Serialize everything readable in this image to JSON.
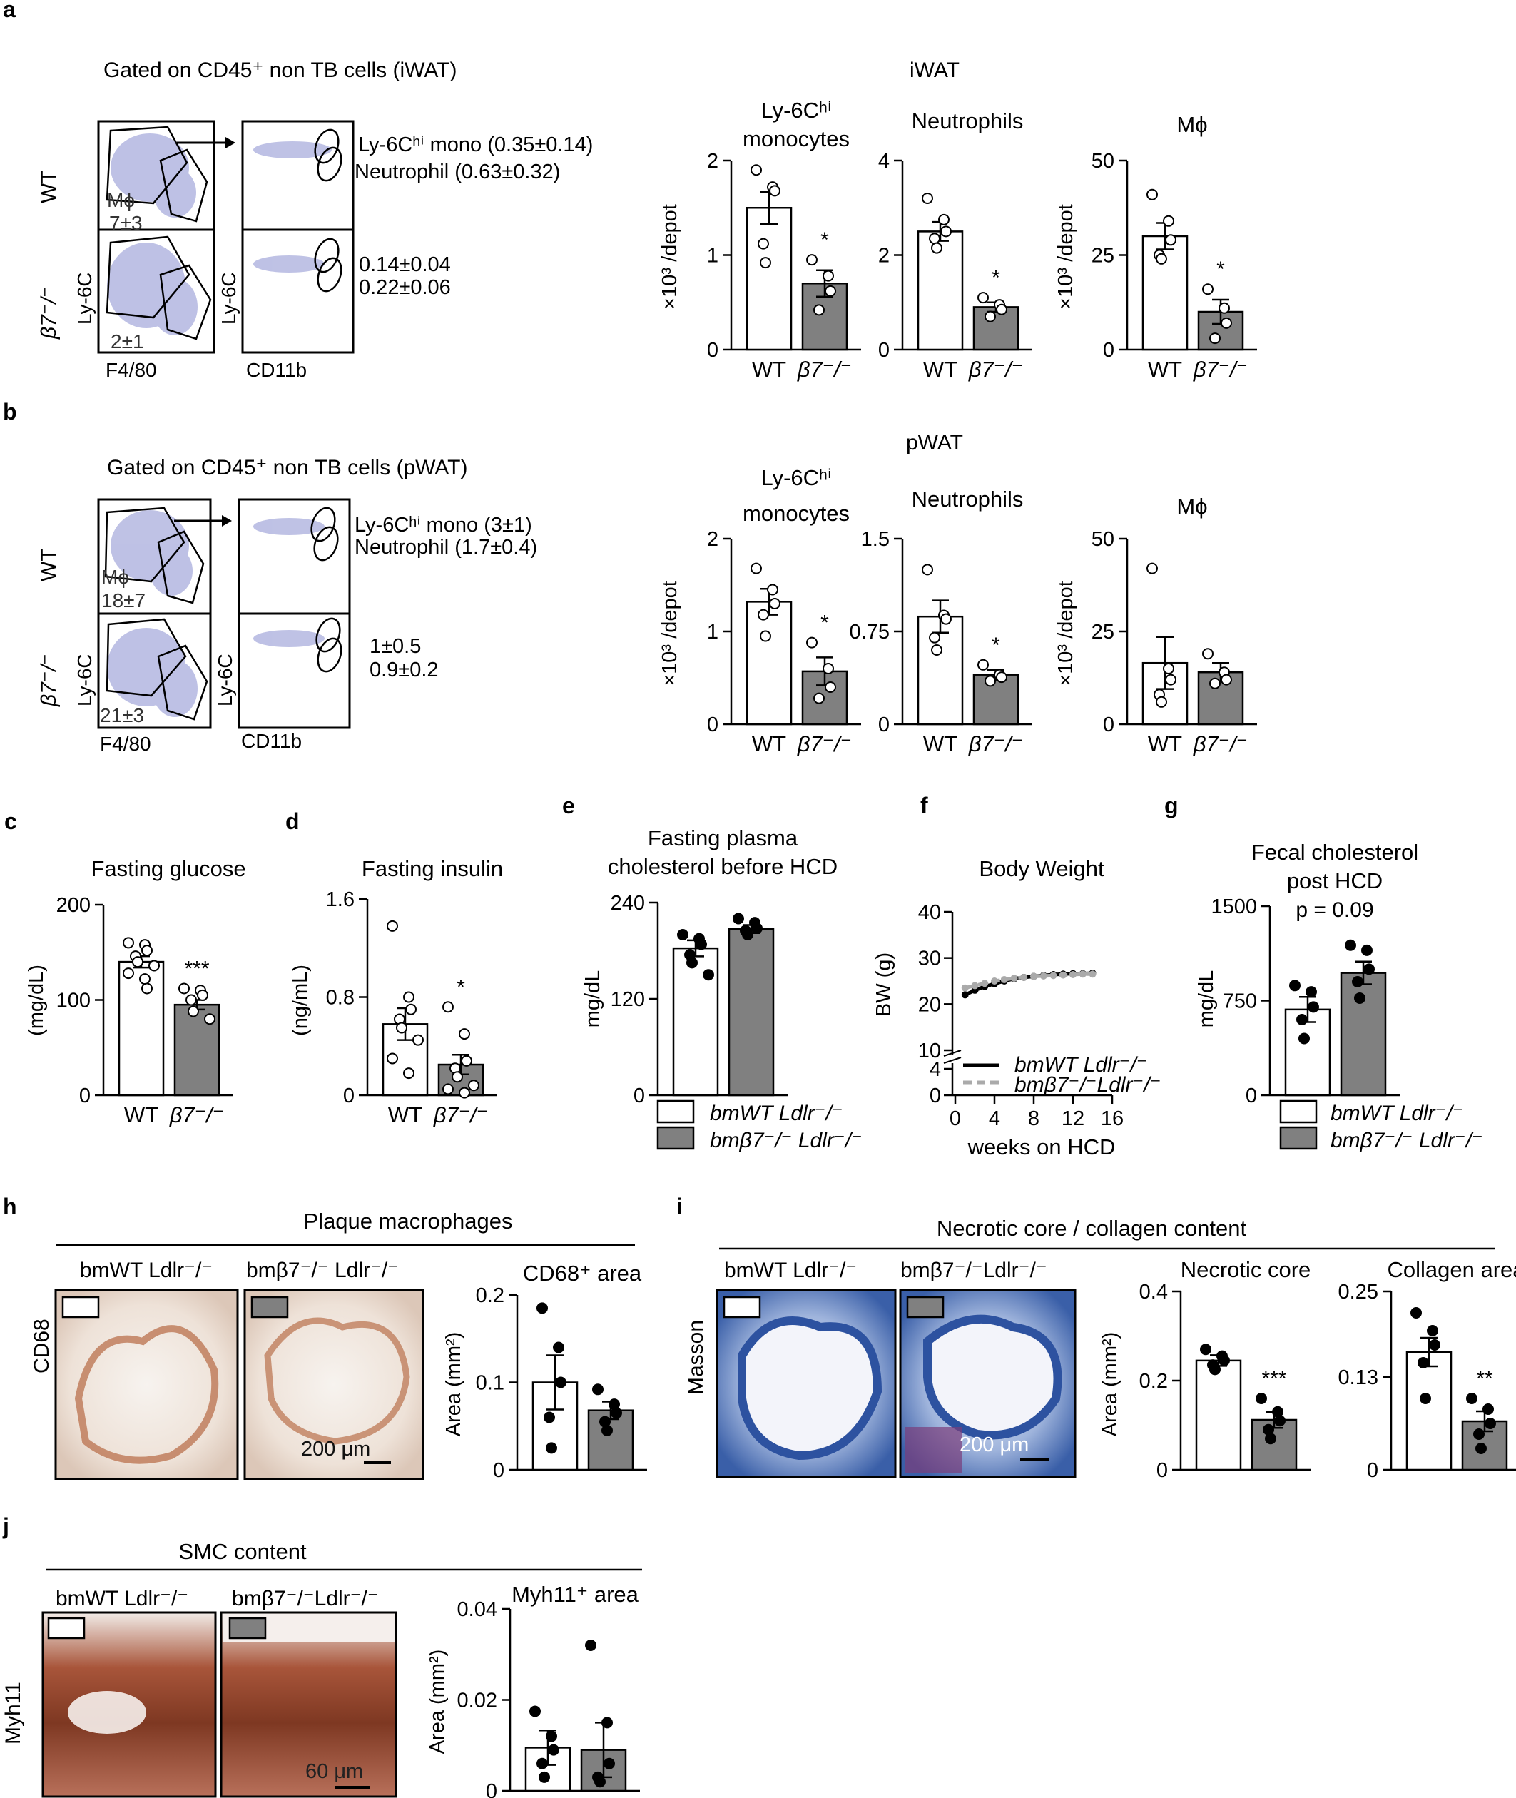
{
  "panels": {
    "a": {
      "letter": "a",
      "gating_title": "Gated on CD45⁺ non TB cells (iWAT)",
      "wt": "WT",
      "ko": "β7⁻/⁻",
      "mphi_wt": "Mϕ",
      "mphi_wt_val": "7±3",
      "mphi_ko_val": "2±1",
      "ly6c_line_wt": "Ly-6Cʰⁱ mono (0.35±0.14)",
      "neut_line_wt": "Neutrophil (0.63±0.32)",
      "ly6c_val_ko": "0.14±0.04",
      "neut_val_ko": "0.22±0.06",
      "axis_ly6c": "Ly-6C",
      "axis_f480": "F4/80",
      "axis_cd11b": "CD11b",
      "group_title": "iWAT"
    },
    "b": {
      "letter": "b",
      "gating_title": "Gated on CD45⁺ non TB cells (pWAT)",
      "wt": "WT",
      "ko": "β7⁻/⁻",
      "mphi_wt": "Mϕ",
      "mphi_wt_val": "18±7",
      "mphi_ko_val": "21±3",
      "ly6c_line_wt": "Ly-6Cʰⁱ mono (3±1)",
      "neut_line_wt": "Neutrophil (1.7±0.4)",
      "ly6c_val_ko": "1±0.5",
      "neut_val_ko": "0.9±0.2",
      "axis_ly6c": "Ly-6C",
      "axis_f480": "F4/80",
      "axis_cd11b": "CD11b",
      "group_title": "pWAT"
    },
    "c": {
      "letter": "c"
    },
    "d": {
      "letter": "d"
    },
    "e": {
      "letter": "e",
      "legend_wt": "bmWT Ldlr⁻/⁻",
      "legend_ko": "bmβ7⁻/⁻ Ldlr⁻/⁻"
    },
    "f": {
      "letter": "f",
      "legend_wt": "bmWT Ldlr⁻/⁻",
      "legend_ko": "bmβ7⁻/⁻Ldlr⁻/⁻"
    },
    "g": {
      "letter": "g",
      "legend_wt": "bmWT Ldlr⁻/⁻",
      "legend_ko": "bmβ7⁻/⁻ Ldlr⁻/⁻"
    },
    "h": {
      "letter": "h",
      "title": "Plaque macrophages",
      "img_wt": "bmWT Ldlr⁻/⁻",
      "img_ko": "bmβ7⁻/⁻ Ldlr⁻/⁻",
      "stain": "CD68",
      "scale": "200 μm"
    },
    "i": {
      "letter": "i",
      "title": "Necrotic core / collagen content",
      "img_wt": "bmWT Ldlr⁻/⁻",
      "img_ko": "bmβ7⁻/⁻Ldlr⁻/⁻",
      "stain": "Masson",
      "scale": "200 μm"
    },
    "j": {
      "letter": "j",
      "title": "SMC content",
      "img_wt": "bmWT Ldlr⁻/⁻",
      "img_ko": "bmβ7⁻/⁻Ldlr⁻/⁻",
      "stain": "Myh11",
      "scale": "60 μm"
    }
  },
  "colors": {
    "wt_fill": "#ffffff",
    "ko_fill": "#808080",
    "dot_dark": "#000000",
    "cd68_stain": "#b9704c",
    "masson_blue": "#3a66b4",
    "myh11_stain": "#9a4a2e"
  },
  "chart_data": [
    {
      "id": "a1",
      "type": "bar",
      "title": "Ly-6Cʰⁱ monocytes",
      "ylabel": "×10³ /depot",
      "ylim": [
        0,
        2
      ],
      "yticks": [
        0,
        1,
        2
      ],
      "categories": [
        "WT",
        "β7⁻/⁻"
      ],
      "values": [
        1.5,
        0.7
      ],
      "errors": [
        0.17,
        0.14
      ],
      "points": [
        [
          1.9,
          1.72,
          1.68,
          1.12,
          0.92
        ],
        [
          0.95,
          0.78,
          0.62,
          0.42
        ]
      ],
      "point_style": "open",
      "annotation": "*"
    },
    {
      "id": "a2",
      "type": "bar",
      "title": "Neutrophils",
      "ylabel": "",
      "ylim": [
        0,
        4
      ],
      "yticks": [
        0,
        2,
        4
      ],
      "categories": [
        "WT",
        "β7⁻/⁻"
      ],
      "values": [
        2.5,
        0.9
      ],
      "errors": [
        0.2,
        0.1
      ],
      "points": [
        [
          3.2,
          2.75,
          2.5,
          2.35,
          2.15
        ],
        [
          1.1,
          0.95,
          0.85,
          0.7
        ]
      ],
      "point_style": "open",
      "annotation": "*"
    },
    {
      "id": "a3",
      "type": "bar",
      "title": "Mϕ",
      "ylabel": "×10³ /depot",
      "ylim": [
        0,
        50
      ],
      "yticks": [
        0,
        25,
        50
      ],
      "categories": [
        "WT",
        "β7⁻/⁻"
      ],
      "values": [
        30,
        10
      ],
      "errors": [
        3.5,
        3.2
      ],
      "points": [
        [
          41,
          34,
          29,
          25,
          24
        ],
        [
          16,
          11,
          7,
          3
        ]
      ],
      "point_style": "open",
      "annotation": "*"
    },
    {
      "id": "b1",
      "type": "bar",
      "title": "Ly-6Cʰⁱ monocytes",
      "ylabel": "×10³ /depot",
      "ylim": [
        0,
        2
      ],
      "yticks": [
        0,
        1,
        2
      ],
      "categories": [
        "WT",
        "β7⁻/⁻"
      ],
      "values": [
        1.32,
        0.57
      ],
      "errors": [
        0.14,
        0.15
      ],
      "points": [
        [
          1.68,
          1.45,
          1.3,
          1.18,
          0.95
        ],
        [
          0.88,
          0.6,
          0.4,
          0.28
        ]
      ],
      "point_style": "open",
      "annotation": "*"
    },
    {
      "id": "b2",
      "type": "bar",
      "title": "Neutrophils",
      "ylabel": "",
      "ylim": [
        0,
        1.5
      ],
      "yticks": [
        0,
        0.75,
        1.5
      ],
      "yticklabels": [
        "0",
        "0.75",
        "1.5"
      ],
      "categories": [
        "WT",
        "β7⁻/⁻"
      ],
      "values": [
        0.87,
        0.4
      ],
      "errors": [
        0.13,
        0.04
      ],
      "points": [
        [
          1.25,
          0.88,
          0.85,
          0.7,
          0.6
        ],
        [
          0.48,
          0.4,
          0.38,
          0.35
        ]
      ],
      "point_style": "open",
      "annotation": "*"
    },
    {
      "id": "b3",
      "type": "bar",
      "title": "Mϕ",
      "ylabel": "×10³ /depot",
      "ylim": [
        0,
        50
      ],
      "yticks": [
        0,
        25,
        50
      ],
      "categories": [
        "WT",
        "β7⁻/⁻"
      ],
      "values": [
        16.5,
        14
      ],
      "errors": [
        7,
        2.5
      ],
      "points": [
        [
          42,
          15,
          12,
          8,
          6
        ],
        [
          19,
          14,
          12,
          11
        ]
      ],
      "point_style": "open",
      "annotation": ""
    },
    {
      "id": "c",
      "type": "bar",
      "title": "Fasting glucose",
      "ylabel": "(mg/dL)",
      "ylim": [
        0,
        200
      ],
      "yticks": [
        0,
        100,
        200
      ],
      "categories": [
        "WT",
        "β7⁻/⁻"
      ],
      "values": [
        140,
        95
      ],
      "errors": [
        6,
        5
      ],
      "points": [
        [
          160,
          158,
          152,
          146,
          140,
          136,
          128,
          122,
          112
        ],
        [
          112,
          110,
          105,
          100,
          88,
          80
        ]
      ],
      "point_style": "open",
      "annotation": "***"
    },
    {
      "id": "d",
      "type": "bar",
      "title": "Fasting insulin",
      "ylabel": "(ng/mL)",
      "ylim": [
        0,
        1.6
      ],
      "yticks": [
        0,
        0.8,
        1.6
      ],
      "categories": [
        "WT",
        "β7⁻/⁻"
      ],
      "values": [
        0.58,
        0.25
      ],
      "errors": [
        0.13,
        0.08
      ],
      "points": [
        [
          1.38,
          0.8,
          0.7,
          0.62,
          0.55,
          0.45,
          0.3,
          0.18
        ],
        [
          0.72,
          0.5,
          0.28,
          0.22,
          0.15,
          0.08,
          0.05,
          0.02
        ]
      ],
      "point_style": "open",
      "annotation": "*"
    },
    {
      "id": "e",
      "type": "bar",
      "title": "Fasting plasma cholesterol before HCD",
      "ylabel": "mg/dL",
      "ylim": [
        0,
        240
      ],
      "yticks": [
        0,
        120,
        240
      ],
      "categories": [
        "bmWT Ldlr⁻/⁻",
        "bmβ7⁻/⁻ Ldlr⁻/⁻"
      ],
      "values": [
        183,
        207
      ],
      "errors": [
        10,
        5
      ],
      "points": [
        [
          200,
          195,
          188,
          175,
          165,
          150
        ],
        [
          220,
          215,
          208,
          205,
          200
        ]
      ],
      "point_style": "filled",
      "annotation": ""
    },
    {
      "id": "f",
      "type": "line",
      "title": "Body Weight",
      "xlabel": "weeks on HCD",
      "ylabel": "BW (g)",
      "ylim": [
        0,
        40
      ],
      "yticks": [
        0,
        4,
        10,
        20,
        30,
        40
      ],
      "axis_break": [
        4,
        10
      ],
      "xticks": [
        0,
        4,
        8,
        12,
        16
      ],
      "x": [
        1,
        2,
        3,
        4,
        5,
        6,
        7,
        8,
        9,
        10,
        11,
        12,
        13,
        14
      ],
      "series": [
        {
          "name": "bmWT Ldlr⁻/⁻",
          "values": [
            22,
            23,
            23.8,
            24.4,
            25,
            25.5,
            25.8,
            26,
            26.2,
            26.4,
            26.5,
            26.6,
            26.6,
            26.7
          ],
          "style": "solid black"
        },
        {
          "name": "bmβ7⁻/⁻Ldlr⁻/⁻",
          "values": [
            23.5,
            24,
            24.5,
            25,
            25.3,
            25.6,
            25.8,
            26,
            26.1,
            26.2,
            26.3,
            26.4,
            26.5,
            26.5
          ],
          "style": "dashed gray"
        }
      ]
    },
    {
      "id": "g",
      "type": "bar",
      "title": "Fecal cholesterol post HCD",
      "ylabel": "mg/dL",
      "ylim": [
        0,
        1500
      ],
      "yticks": [
        0,
        750,
        1500
      ],
      "categories": [
        "bmWT Ldlr⁻/⁻",
        "bmβ7⁻/⁻ Ldlr⁻/⁻"
      ],
      "values": [
        680,
        970
      ],
      "errors": [
        100,
        90
      ],
      "points": [
        [
          870,
          820,
          700,
          600,
          450
        ],
        [
          1190,
          1150,
          1000,
          900,
          770
        ]
      ],
      "point_style": "filled",
      "annotation": "p = 0.09"
    },
    {
      "id": "h",
      "type": "bar",
      "title": "CD68⁺ area",
      "ylabel": "Area (mm²)",
      "ylim": [
        0,
        0.2
      ],
      "yticks": [
        0,
        0.1,
        0.2
      ],
      "categories": [
        "bmWT Ldlr⁻/⁻",
        "bmβ7⁻/⁻ Ldlr⁻/⁻"
      ],
      "values": [
        0.1,
        0.068
      ],
      "errors": [
        0.031,
        0.01
      ],
      "points": [
        [
          0.185,
          0.14,
          0.1,
          0.06,
          0.025
        ],
        [
          0.092,
          0.075,
          0.065,
          0.055,
          0.045
        ]
      ],
      "point_style": "filled",
      "annotation": ""
    },
    {
      "id": "i1",
      "type": "bar",
      "title": "Necrotic core",
      "ylabel": "Area (mm²)",
      "ylim": [
        0,
        0.4
      ],
      "yticks": [
        0,
        0.2,
        0.4
      ],
      "categories": [
        "bmWT Ldlr⁻/⁻",
        "bmβ7⁻/⁻ Ldlr⁻/⁻"
      ],
      "values": [
        0.245,
        0.112
      ],
      "errors": [
        0.012,
        0.018
      ],
      "points": [
        [
          0.27,
          0.255,
          0.245,
          0.235,
          0.225
        ],
        [
          0.16,
          0.13,
          0.11,
          0.09,
          0.07
        ]
      ],
      "point_style": "filled",
      "annotation": "***"
    },
    {
      "id": "i2",
      "type": "bar",
      "title": "Collagen area",
      "ylabel": "",
      "ylim": [
        0,
        0.25
      ],
      "yticks": [
        0,
        0.13,
        0.25
      ],
      "categories": [
        "bmWT Ldlr⁻/⁻",
        "bmβ7⁻/⁻ Ldlr⁻/⁻"
      ],
      "values": [
        0.165,
        0.068
      ],
      "errors": [
        0.02,
        0.014
      ],
      "points": [
        [
          0.22,
          0.195,
          0.175,
          0.15,
          0.1
        ],
        [
          0.1,
          0.085,
          0.065,
          0.05,
          0.03
        ]
      ],
      "point_style": "filled",
      "annotation": "**"
    },
    {
      "id": "j",
      "type": "bar",
      "title": "Myh11⁺ area",
      "ylabel": "Area (mm²)",
      "ylim": [
        0,
        0.04
      ],
      "yticks": [
        0,
        0.02,
        0.04
      ],
      "categories": [
        "bmWT Ldlr⁻/⁻",
        "bmβ7⁻/⁻Ldlr⁻/⁻"
      ],
      "values": [
        0.0095,
        0.009
      ],
      "errors": [
        0.0038,
        0.006
      ],
      "points": [
        [
          0.0175,
          0.012,
          0.009,
          0.006,
          0.003
        ],
        [
          0.032,
          0.015,
          0.006,
          0.003,
          0.002
        ]
      ],
      "point_style": "filled",
      "annotation": ""
    }
  ]
}
